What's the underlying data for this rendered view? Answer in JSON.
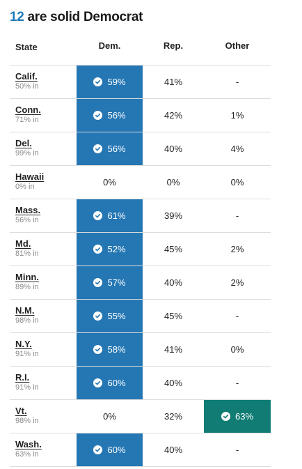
{
  "heading": {
    "count": "12",
    "rest": " are solid Democrat"
  },
  "columns": {
    "state": "State",
    "dem": "Dem.",
    "rep": "Rep.",
    "other": "Other"
  },
  "colors": {
    "dem_win": "#2577b4",
    "other_win": "#107c74",
    "count_accent": "#1f7ab8"
  },
  "rows": [
    {
      "state": "Calif.",
      "reporting": "50% in",
      "dem": "59%",
      "rep": "41%",
      "other": "-",
      "winner": "dem"
    },
    {
      "state": "Conn.",
      "reporting": "71% in",
      "dem": "56%",
      "rep": "42%",
      "other": "1%",
      "winner": "dem"
    },
    {
      "state": "Del.",
      "reporting": "99% in",
      "dem": "56%",
      "rep": "40%",
      "other": "4%",
      "winner": "dem"
    },
    {
      "state": "Hawaii",
      "reporting": "0% in",
      "dem": "0%",
      "rep": "0%",
      "other": "0%",
      "winner": ""
    },
    {
      "state": "Mass.",
      "reporting": "56% in",
      "dem": "61%",
      "rep": "39%",
      "other": "-",
      "winner": "dem"
    },
    {
      "state": "Md.",
      "reporting": "81% in",
      "dem": "52%",
      "rep": "45%",
      "other": "2%",
      "winner": "dem"
    },
    {
      "state": "Minn.",
      "reporting": "89% in",
      "dem": "57%",
      "rep": "40%",
      "other": "2%",
      "winner": "dem"
    },
    {
      "state": "N.M.",
      "reporting": "98% in",
      "dem": "55%",
      "rep": "45%",
      "other": "-",
      "winner": "dem"
    },
    {
      "state": "N.Y.",
      "reporting": "91% in",
      "dem": "58%",
      "rep": "41%",
      "other": "0%",
      "winner": "dem"
    },
    {
      "state": "R.I.",
      "reporting": "91% in",
      "dem": "60%",
      "rep": "40%",
      "other": "-",
      "winner": "dem"
    },
    {
      "state": "Vt.",
      "reporting": "98% in",
      "dem": "0%",
      "rep": "32%",
      "other": "63%",
      "winner": "other"
    },
    {
      "state": "Wash.",
      "reporting": "63% in",
      "dem": "60%",
      "rep": "40%",
      "other": "-",
      "winner": "dem"
    }
  ]
}
